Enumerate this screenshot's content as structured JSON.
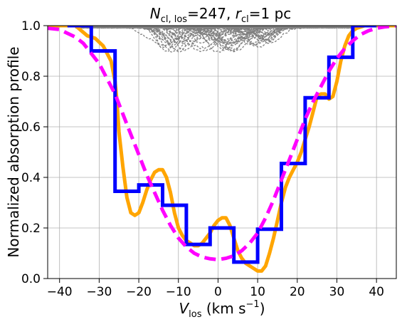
{
  "chart_data": {
    "type": "line",
    "title": {
      "n_sym": "N",
      "n_sub": "cl, los",
      "n_val": "=247, ",
      "r_sym": "r",
      "r_sub": "cl",
      "r_val": "=1 pc"
    },
    "xlabel": {
      "sym": "V",
      "sub": "los",
      "unit_open": " (km s",
      "unit_exp": "−1",
      "unit_close": ")"
    },
    "ylabel": "Normalized absorption profile",
    "xlim": [
      -43,
      45
    ],
    "ylim": [
      0.0,
      1.0
    ],
    "xticks": [
      -40,
      -30,
      -20,
      -10,
      0,
      10,
      20,
      30,
      40
    ],
    "yticks": [
      0.0,
      0.2,
      0.4,
      0.6,
      0.8,
      1.0
    ],
    "grid": true,
    "colors": {
      "orange": "#ffa500",
      "blue": "#0000ff",
      "magenta": "#ff00ff",
      "gray": "#808080"
    },
    "series": [
      {
        "style": "orange-solid",
        "x": [
          -43,
          -36,
          -33,
          -31,
          -29,
          -27,
          -26,
          -25.5,
          -25,
          -24,
          -23,
          -22,
          -21,
          -20,
          -19,
          -18,
          -17,
          -16,
          -15,
          -14,
          -13,
          -12,
          -11,
          -10,
          -9,
          -8,
          -7,
          -6,
          -5,
          -4,
          -3,
          -2,
          -1,
          0,
          1,
          2,
          3,
          4,
          5,
          6,
          7,
          8,
          9,
          10,
          11,
          12,
          13,
          14,
          15,
          16,
          17,
          18,
          19,
          20,
          21,
          22,
          23,
          24,
          25,
          26,
          27,
          28,
          29,
          30,
          31,
          32,
          33,
          34,
          35,
          37,
          40,
          45
        ],
        "y": [
          1.0,
          1.0,
          0.96,
          0.95,
          0.92,
          0.86,
          0.78,
          0.7,
          0.58,
          0.44,
          0.32,
          0.26,
          0.25,
          0.26,
          0.3,
          0.35,
          0.39,
          0.42,
          0.43,
          0.43,
          0.4,
          0.34,
          0.26,
          0.2,
          0.17,
          0.15,
          0.14,
          0.13,
          0.13,
          0.14,
          0.16,
          0.18,
          0.21,
          0.23,
          0.24,
          0.24,
          0.21,
          0.16,
          0.11,
          0.08,
          0.06,
          0.05,
          0.04,
          0.03,
          0.03,
          0.05,
          0.1,
          0.16,
          0.23,
          0.3,
          0.36,
          0.4,
          0.43,
          0.46,
          0.5,
          0.55,
          0.6,
          0.66,
          0.72,
          0.73,
          0.73,
          0.71,
          0.72,
          0.78,
          0.86,
          0.92,
          0.96,
          0.98,
          0.99,
          1.0,
          1.0,
          1.0
        ]
      },
      {
        "style": "blue-step",
        "edges": [
          -38,
          -32,
          -26,
          -20,
          -14,
          -8,
          -2,
          4,
          10,
          16,
          22,
          28,
          34,
          40
        ],
        "values": [
          1.0,
          0.9,
          0.345,
          0.37,
          0.29,
          0.135,
          0.2,
          0.065,
          0.195,
          0.455,
          0.715,
          0.875,
          1.0
        ]
      },
      {
        "style": "magenta-dashed",
        "x": [
          -43,
          -40,
          -38,
          -36,
          -34,
          -32,
          -30,
          -28,
          -26,
          -24,
          -22,
          -20,
          -18,
          -16,
          -14,
          -12,
          -10,
          -8,
          -6,
          -4,
          -2,
          0,
          2,
          4,
          6,
          8,
          10,
          12,
          14,
          16,
          18,
          20,
          22,
          24,
          26,
          28,
          30,
          32,
          34,
          36,
          38,
          40,
          42,
          45
        ],
        "y": [
          0.99,
          0.985,
          0.97,
          0.955,
          0.93,
          0.89,
          0.85,
          0.79,
          0.73,
          0.65,
          0.57,
          0.49,
          0.41,
          0.34,
          0.27,
          0.21,
          0.16,
          0.125,
          0.1,
          0.085,
          0.078,
          0.075,
          0.08,
          0.09,
          0.11,
          0.14,
          0.18,
          0.24,
          0.31,
          0.39,
          0.47,
          0.55,
          0.63,
          0.7,
          0.76,
          0.82,
          0.87,
          0.91,
          0.94,
          0.965,
          0.98,
          0.99,
          0.995,
          1.0
        ]
      },
      {
        "style": "gray-dashed-cloud",
        "xrange": [
          -36,
          36
        ],
        "count": 60,
        "center_spread": 14,
        "max_depth": 0.08
      }
    ]
  }
}
